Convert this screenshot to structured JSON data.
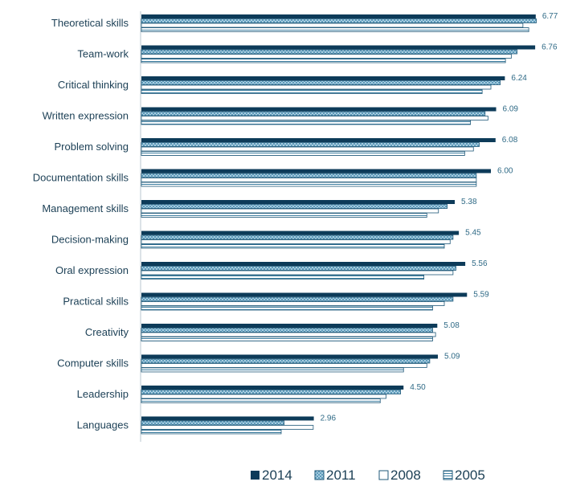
{
  "chart_data": {
    "type": "bar",
    "orientation": "horizontal",
    "categories": [
      "Theoretical skills",
      "Team-work",
      "Critical thinking",
      "Written expression",
      "Problem solving",
      "Documentation skills",
      "Management skills",
      "Decision-making",
      "Oral expression",
      "Practical skills",
      "Creativity",
      "Computer skills",
      "Leadership",
      "Languages"
    ],
    "series": [
      {
        "name": "2014",
        "values": [
          6.77,
          6.76,
          6.24,
          6.09,
          6.08,
          6.0,
          5.38,
          5.45,
          5.56,
          5.59,
          5.08,
          5.09,
          4.5,
          2.96
        ]
      },
      {
        "name": "2011",
        "values": [
          6.78,
          6.45,
          6.16,
          5.9,
          5.8,
          5.75,
          5.25,
          5.35,
          5.4,
          5.35,
          5.0,
          4.95,
          4.45,
          2.45
        ]
      },
      {
        "name": "2008",
        "values": [
          6.55,
          6.35,
          6.0,
          5.95,
          5.7,
          5.75,
          5.1,
          5.3,
          5.35,
          5.2,
          5.05,
          4.9,
          4.2,
          2.95
        ]
      },
      {
        "name": "2005",
        "values": [
          6.65,
          6.25,
          5.85,
          5.65,
          5.55,
          5.75,
          4.9,
          5.2,
          4.85,
          5.0,
          5.0,
          4.5,
          4.1,
          2.4
        ]
      }
    ],
    "data_labels": [
      "6.77",
      "6.76",
      "6.24",
      "6.09",
      "6.08",
      "6.00",
      "5.38",
      "5.45",
      "5.56",
      "5.59",
      "5.08",
      "5.09",
      "4.50",
      "2.96"
    ],
    "xlim": [
      0,
      7.0
    ],
    "grid": false,
    "legend_position": "bottom-right",
    "colors": {
      "2014": "#0d3b59",
      "2011": "#4a8fb0",
      "2008": "#ffffff",
      "2005": "#6fa3bf",
      "outline": "#1f5878"
    }
  }
}
